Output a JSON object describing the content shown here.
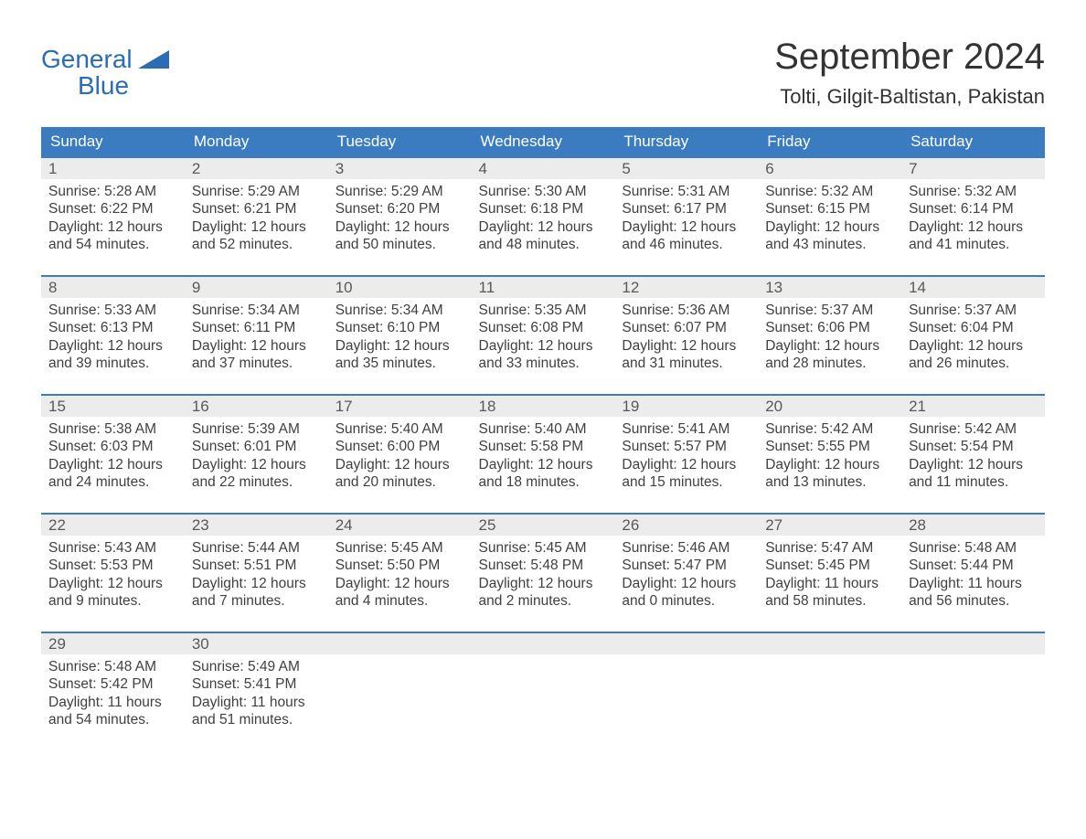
{
  "brand": {
    "line1": "General",
    "line2": "Blue",
    "accent_color": "#2a6db5"
  },
  "title": "September 2024",
  "location": "Tolti, Gilgit-Baltistan, Pakistan",
  "colors": {
    "header_bg": "#3b7bbf",
    "header_text": "#ffffff",
    "daynum_bg": "#ececec",
    "daynum_border": "#3b7bbf",
    "body_text": "#404040",
    "title_text": "#333333",
    "page_bg": "#ffffff"
  },
  "day_headers": [
    "Sunday",
    "Monday",
    "Tuesday",
    "Wednesday",
    "Thursday",
    "Friday",
    "Saturday"
  ],
  "weeks": [
    [
      {
        "num": "1",
        "sunrise": "Sunrise: 5:28 AM",
        "sunset": "Sunset: 6:22 PM",
        "daylight1": "Daylight: 12 hours",
        "daylight2": "and 54 minutes."
      },
      {
        "num": "2",
        "sunrise": "Sunrise: 5:29 AM",
        "sunset": "Sunset: 6:21 PM",
        "daylight1": "Daylight: 12 hours",
        "daylight2": "and 52 minutes."
      },
      {
        "num": "3",
        "sunrise": "Sunrise: 5:29 AM",
        "sunset": "Sunset: 6:20 PM",
        "daylight1": "Daylight: 12 hours",
        "daylight2": "and 50 minutes."
      },
      {
        "num": "4",
        "sunrise": "Sunrise: 5:30 AM",
        "sunset": "Sunset: 6:18 PM",
        "daylight1": "Daylight: 12 hours",
        "daylight2": "and 48 minutes."
      },
      {
        "num": "5",
        "sunrise": "Sunrise: 5:31 AM",
        "sunset": "Sunset: 6:17 PM",
        "daylight1": "Daylight: 12 hours",
        "daylight2": "and 46 minutes."
      },
      {
        "num": "6",
        "sunrise": "Sunrise: 5:32 AM",
        "sunset": "Sunset: 6:15 PM",
        "daylight1": "Daylight: 12 hours",
        "daylight2": "and 43 minutes."
      },
      {
        "num": "7",
        "sunrise": "Sunrise: 5:32 AM",
        "sunset": "Sunset: 6:14 PM",
        "daylight1": "Daylight: 12 hours",
        "daylight2": "and 41 minutes."
      }
    ],
    [
      {
        "num": "8",
        "sunrise": "Sunrise: 5:33 AM",
        "sunset": "Sunset: 6:13 PM",
        "daylight1": "Daylight: 12 hours",
        "daylight2": "and 39 minutes."
      },
      {
        "num": "9",
        "sunrise": "Sunrise: 5:34 AM",
        "sunset": "Sunset: 6:11 PM",
        "daylight1": "Daylight: 12 hours",
        "daylight2": "and 37 minutes."
      },
      {
        "num": "10",
        "sunrise": "Sunrise: 5:34 AM",
        "sunset": "Sunset: 6:10 PM",
        "daylight1": "Daylight: 12 hours",
        "daylight2": "and 35 minutes."
      },
      {
        "num": "11",
        "sunrise": "Sunrise: 5:35 AM",
        "sunset": "Sunset: 6:08 PM",
        "daylight1": "Daylight: 12 hours",
        "daylight2": "and 33 minutes."
      },
      {
        "num": "12",
        "sunrise": "Sunrise: 5:36 AM",
        "sunset": "Sunset: 6:07 PM",
        "daylight1": "Daylight: 12 hours",
        "daylight2": "and 31 minutes."
      },
      {
        "num": "13",
        "sunrise": "Sunrise: 5:37 AM",
        "sunset": "Sunset: 6:06 PM",
        "daylight1": "Daylight: 12 hours",
        "daylight2": "and 28 minutes."
      },
      {
        "num": "14",
        "sunrise": "Sunrise: 5:37 AM",
        "sunset": "Sunset: 6:04 PM",
        "daylight1": "Daylight: 12 hours",
        "daylight2": "and 26 minutes."
      }
    ],
    [
      {
        "num": "15",
        "sunrise": "Sunrise: 5:38 AM",
        "sunset": "Sunset: 6:03 PM",
        "daylight1": "Daylight: 12 hours",
        "daylight2": "and 24 minutes."
      },
      {
        "num": "16",
        "sunrise": "Sunrise: 5:39 AM",
        "sunset": "Sunset: 6:01 PM",
        "daylight1": "Daylight: 12 hours",
        "daylight2": "and 22 minutes."
      },
      {
        "num": "17",
        "sunrise": "Sunrise: 5:40 AM",
        "sunset": "Sunset: 6:00 PM",
        "daylight1": "Daylight: 12 hours",
        "daylight2": "and 20 minutes."
      },
      {
        "num": "18",
        "sunrise": "Sunrise: 5:40 AM",
        "sunset": "Sunset: 5:58 PM",
        "daylight1": "Daylight: 12 hours",
        "daylight2": "and 18 minutes."
      },
      {
        "num": "19",
        "sunrise": "Sunrise: 5:41 AM",
        "sunset": "Sunset: 5:57 PM",
        "daylight1": "Daylight: 12 hours",
        "daylight2": "and 15 minutes."
      },
      {
        "num": "20",
        "sunrise": "Sunrise: 5:42 AM",
        "sunset": "Sunset: 5:55 PM",
        "daylight1": "Daylight: 12 hours",
        "daylight2": "and 13 minutes."
      },
      {
        "num": "21",
        "sunrise": "Sunrise: 5:42 AM",
        "sunset": "Sunset: 5:54 PM",
        "daylight1": "Daylight: 12 hours",
        "daylight2": "and 11 minutes."
      }
    ],
    [
      {
        "num": "22",
        "sunrise": "Sunrise: 5:43 AM",
        "sunset": "Sunset: 5:53 PM",
        "daylight1": "Daylight: 12 hours",
        "daylight2": "and 9 minutes."
      },
      {
        "num": "23",
        "sunrise": "Sunrise: 5:44 AM",
        "sunset": "Sunset: 5:51 PM",
        "daylight1": "Daylight: 12 hours",
        "daylight2": "and 7 minutes."
      },
      {
        "num": "24",
        "sunrise": "Sunrise: 5:45 AM",
        "sunset": "Sunset: 5:50 PM",
        "daylight1": "Daylight: 12 hours",
        "daylight2": "and 4 minutes."
      },
      {
        "num": "25",
        "sunrise": "Sunrise: 5:45 AM",
        "sunset": "Sunset: 5:48 PM",
        "daylight1": "Daylight: 12 hours",
        "daylight2": "and 2 minutes."
      },
      {
        "num": "26",
        "sunrise": "Sunrise: 5:46 AM",
        "sunset": "Sunset: 5:47 PM",
        "daylight1": "Daylight: 12 hours",
        "daylight2": "and 0 minutes."
      },
      {
        "num": "27",
        "sunrise": "Sunrise: 5:47 AM",
        "sunset": "Sunset: 5:45 PM",
        "daylight1": "Daylight: 11 hours",
        "daylight2": "and 58 minutes."
      },
      {
        "num": "28",
        "sunrise": "Sunrise: 5:48 AM",
        "sunset": "Sunset: 5:44 PM",
        "daylight1": "Daylight: 11 hours",
        "daylight2": "and 56 minutes."
      }
    ],
    [
      {
        "num": "29",
        "sunrise": "Sunrise: 5:48 AM",
        "sunset": "Sunset: 5:42 PM",
        "daylight1": "Daylight: 11 hours",
        "daylight2": "and 54 minutes."
      },
      {
        "num": "30",
        "sunrise": "Sunrise: 5:49 AM",
        "sunset": "Sunset: 5:41 PM",
        "daylight1": "Daylight: 11 hours",
        "daylight2": "and 51 minutes."
      },
      {
        "empty": true
      },
      {
        "empty": true
      },
      {
        "empty": true
      },
      {
        "empty": true
      },
      {
        "empty": true
      }
    ]
  ]
}
